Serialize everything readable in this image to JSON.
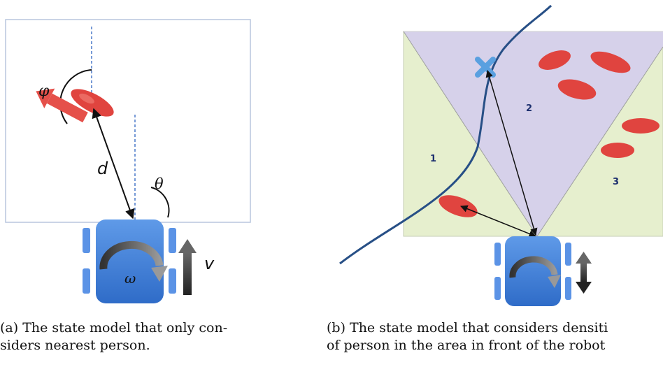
{
  "panel_a": {
    "labels": {
      "phi": "φ",
      "d": "d",
      "theta": "θ",
      "omega": "ω",
      "v": "v"
    },
    "caption_line1": "(a) The state model that only con-",
    "caption_line2": "siders nearest person."
  },
  "panel_b": {
    "regions": {
      "r1": "1",
      "r2": "2",
      "r3": "3"
    },
    "caption_line1": "(b) The state model that considers densiti",
    "caption_line2": "of person in the area in front of the robot"
  },
  "colors": {
    "person": "#e0443f",
    "robot": "#3f7fdc",
    "robot_wheel": "#5b93e6",
    "heading_arrow": "#e5504a",
    "frame": "#b9c6de",
    "cone_purple": "#d6d1ea",
    "side_green": "#e6efce",
    "trajectory": "#274f86",
    "goal_marker": "#5aa0e0"
  }
}
